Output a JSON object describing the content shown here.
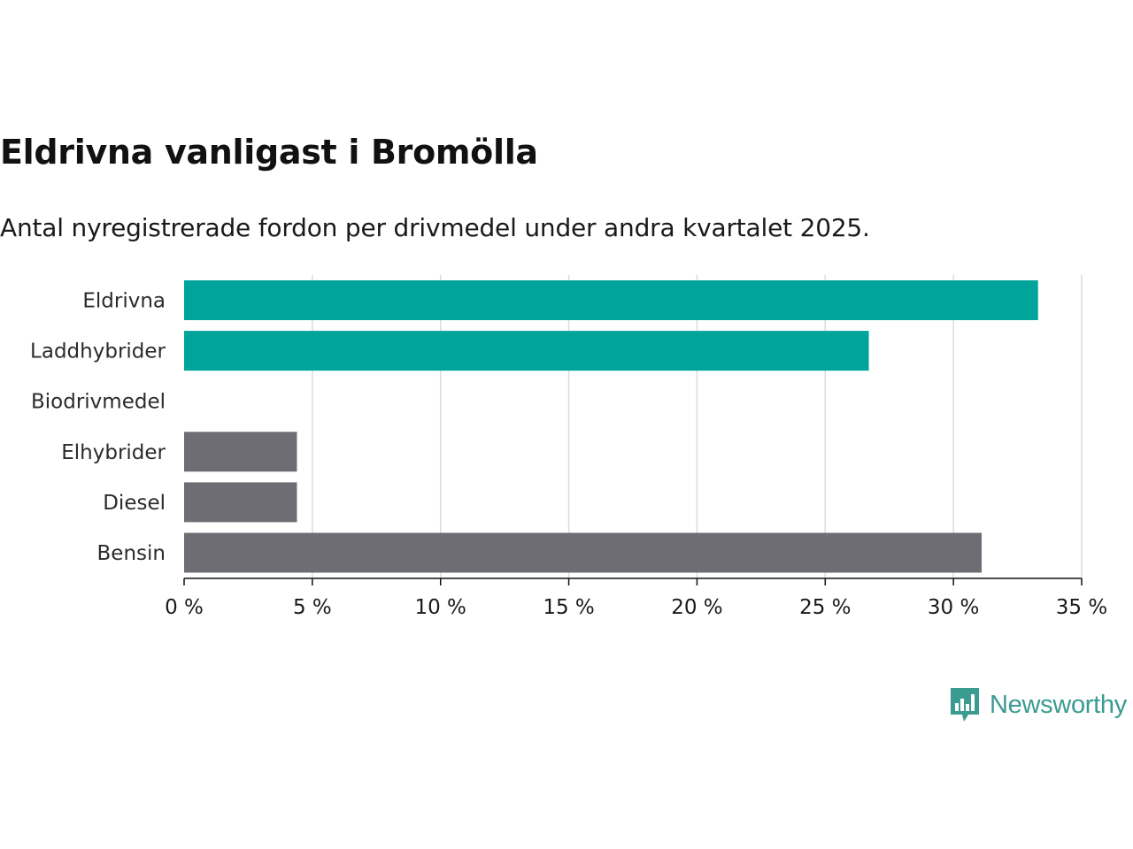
{
  "chart_data": {
    "type": "bar",
    "orientation": "horizontal",
    "title": "Eldrivna vanligast i Bromölla",
    "subtitle": "Antal nyregistrerade fordon per drivmedel under andra kvartalet 2025.",
    "categories": [
      "Eldrivna",
      "Laddhybrider",
      "Biodrivmedel",
      "Elhybrider",
      "Diesel",
      "Bensin"
    ],
    "values": [
      33.3,
      26.7,
      0,
      4.4,
      4.4,
      31.1
    ],
    "bar_colors": [
      "#00a49a",
      "#00a49a",
      "#6e6d73",
      "#6e6d73",
      "#6e6d73",
      "#6e6d73"
    ],
    "xlim": [
      0,
      35
    ],
    "xticks": [
      0,
      5,
      10,
      15,
      20,
      25,
      30,
      35
    ],
    "xtick_labels": [
      "0 %",
      "5 %",
      "10 %",
      "15 %",
      "20 %",
      "25 %",
      "30 %",
      "35 %"
    ],
    "grid": true,
    "xlabel": "",
    "ylabel": ""
  },
  "brand": {
    "name": "Newsworthy",
    "color": "#3a9b91",
    "icon": "newsworthy-logo-icon"
  }
}
